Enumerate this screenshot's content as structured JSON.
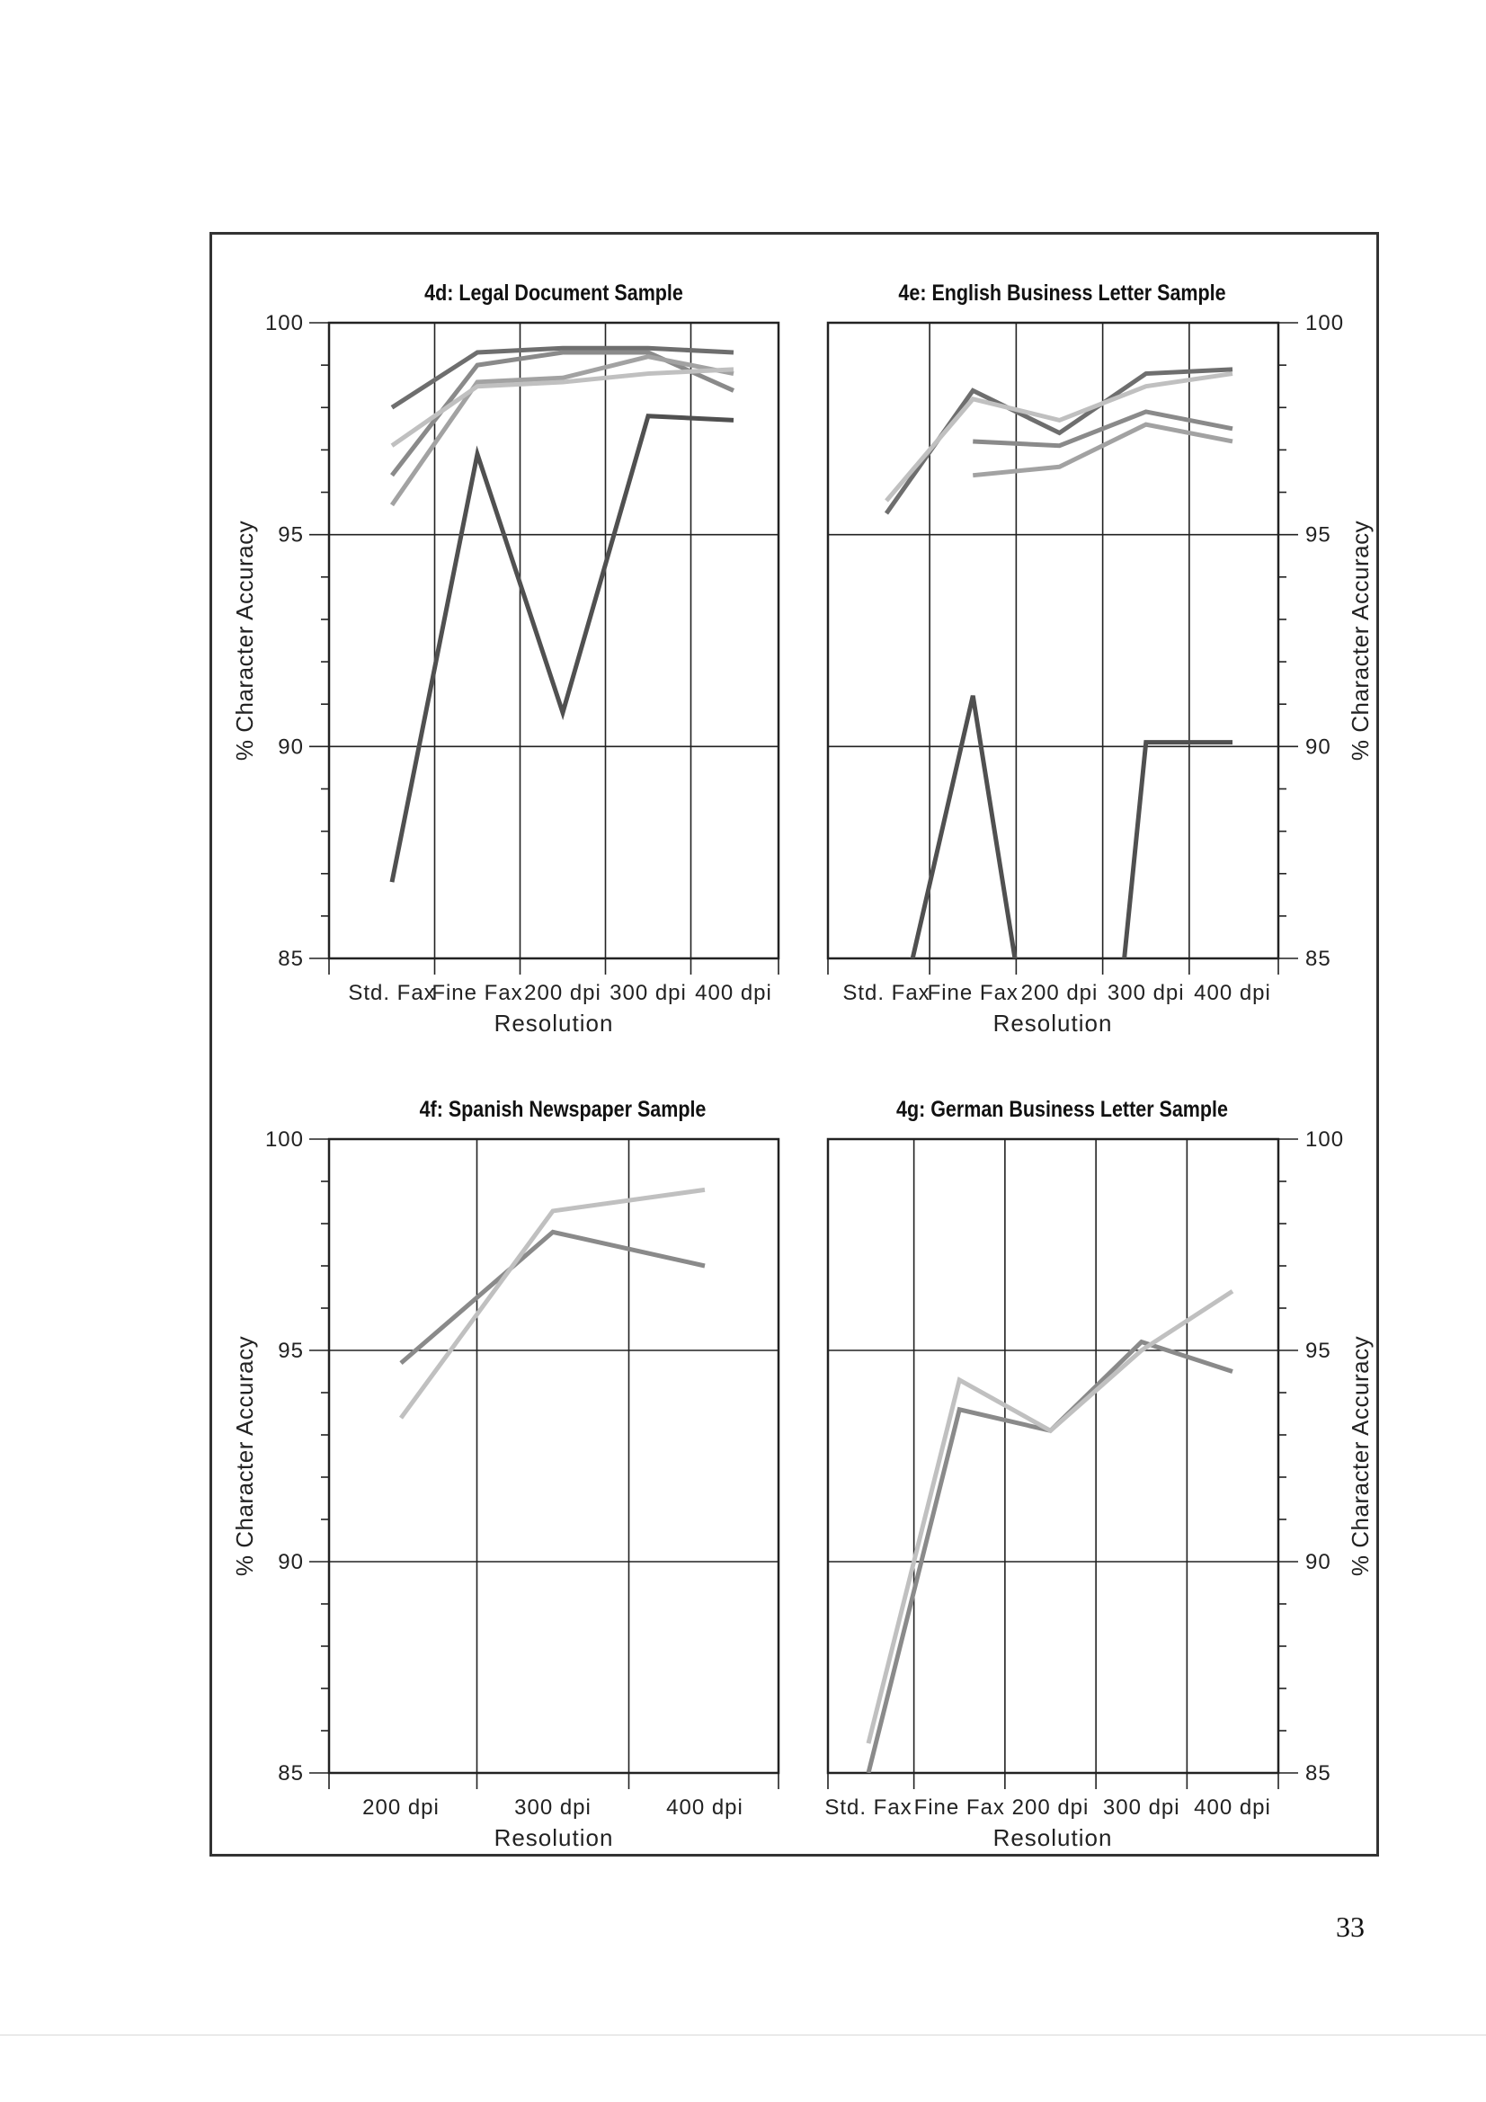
{
  "page_number": "33",
  "chart_data": [
    {
      "id": "4d",
      "type": "line",
      "title": "4d: Legal Document Sample",
      "xlabel": "Resolution",
      "ylabel": "% Character Accuracy",
      "categories": [
        "Std. Fax",
        "Fine Fax",
        "200 dpi",
        "300 dpi",
        "400 dpi"
      ],
      "yticks": [
        "100",
        "95",
        "90",
        "85"
      ],
      "ylim": [
        85,
        100
      ],
      "grid": true,
      "legend": "none",
      "series": [
        {
          "color": "#505050",
          "values": [
            86.8,
            96.9,
            90.8,
            97.8,
            97.7
          ]
        },
        {
          "color": "#6e6e6e",
          "values": [
            98.0,
            99.3,
            99.4,
            99.4,
            99.3
          ]
        },
        {
          "color": "#8a8a8a",
          "values": [
            96.4,
            99.0,
            99.3,
            99.3,
            98.4
          ]
        },
        {
          "color": "#a2a2a2",
          "values": [
            95.7,
            98.6,
            98.7,
            99.2,
            98.8
          ]
        },
        {
          "color": "#c0c0c0",
          "values": [
            97.1,
            98.5,
            98.6,
            98.8,
            98.9
          ]
        }
      ]
    },
    {
      "id": "4e",
      "type": "line",
      "title": "4e: English Business Letter Sample",
      "xlabel": "Resolution",
      "ylabel": "% Character Accuracy",
      "categories": [
        "Std. Fax",
        "Fine Fax",
        "200 dpi",
        "300 dpi",
        "400 dpi"
      ],
      "yticks": [
        "100",
        "95",
        "90",
        "85"
      ],
      "ylim": [
        85,
        100
      ],
      "grid": true,
      "legend": "none",
      "series": [
        {
          "color": "#505050",
          "values": [
            null,
            91.2,
            null,
            90.1,
            90.1
          ]
        },
        {
          "color": "#6e6e6e",
          "values": [
            95.5,
            98.4,
            97.4,
            98.8,
            98.9
          ]
        },
        {
          "color": "#c0c0c0",
          "values": [
            95.8,
            98.2,
            97.7,
            98.5,
            98.8
          ]
        },
        {
          "color": "#8a8a8a",
          "values": [
            null,
            97.2,
            97.1,
            97.9,
            97.5
          ]
        },
        {
          "color": "#a2a2a2",
          "values": [
            null,
            96.4,
            96.6,
            97.6,
            97.2
          ]
        }
      ]
    },
    {
      "id": "4f",
      "type": "line",
      "title": "4f: Spanish Newspaper Sample",
      "xlabel": "Resolution",
      "ylabel": "% Character Accuracy",
      "categories": [
        "200 dpi",
        "300 dpi",
        "400 dpi"
      ],
      "yticks": [
        "100",
        "95",
        "90",
        "85"
      ],
      "ylim": [
        85,
        100
      ],
      "grid": true,
      "legend": "none",
      "series": [
        {
          "color": "#8a8a8a",
          "values": [
            94.7,
            97.8,
            97.0
          ]
        },
        {
          "color": "#c0c0c0",
          "values": [
            93.4,
            98.3,
            98.8
          ]
        }
      ]
    },
    {
      "id": "4g",
      "type": "line",
      "title": "4g: German Business Letter Sample",
      "xlabel": "Resolution",
      "ylabel": "% Character Accuracy",
      "categories": [
        "Std. Fax",
        "Fine Fax",
        "200 dpi",
        "300 dpi",
        "400 dpi"
      ],
      "yticks": [
        "100",
        "95",
        "90",
        "85"
      ],
      "ylim": [
        85,
        100
      ],
      "grid": true,
      "legend": "none",
      "series": [
        {
          "color": "#8a8a8a",
          "values": [
            85.0,
            93.6,
            93.1,
            95.2,
            94.5
          ]
        },
        {
          "color": "#c0c0c0",
          "values": [
            85.7,
            94.3,
            93.1,
            95.0,
            96.4
          ]
        }
      ]
    }
  ]
}
